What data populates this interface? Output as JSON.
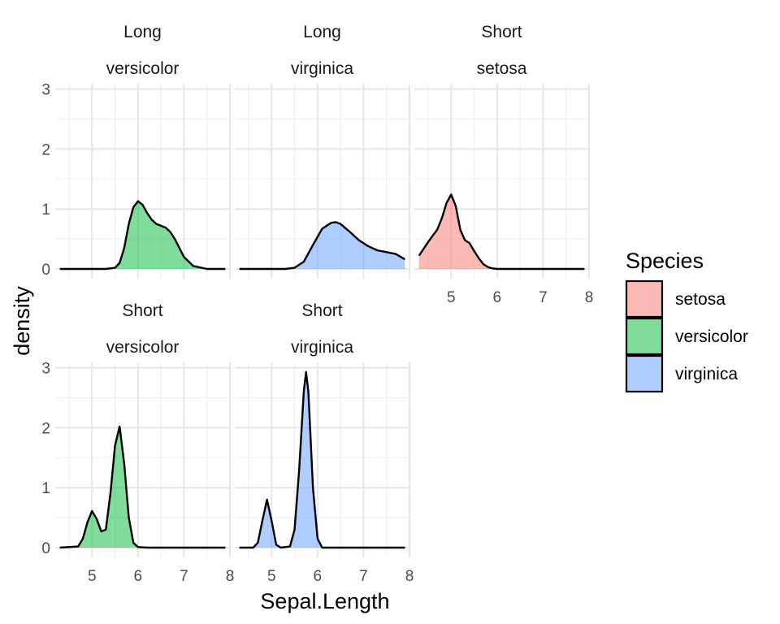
{
  "chart_data": {
    "type": "area",
    "xlabel": "Sepal.Length",
    "ylabel": "density",
    "xlim": [
      4.2,
      8.0
    ],
    "ylim": [
      0,
      3
    ],
    "x_ticks": [
      5,
      6,
      7,
      8
    ],
    "y_ticks": [
      0,
      1,
      2,
      3
    ],
    "grid": true,
    "legend": {
      "title": "Species",
      "position": "right",
      "entries": [
        {
          "label": "setosa",
          "color": "#F8766D"
        },
        {
          "label": "versicolor",
          "color": "#00BA38"
        },
        {
          "label": "virginica",
          "color": "#619CFF"
        }
      ]
    },
    "panels": [
      {
        "strip_top": "Long",
        "strip_bottom": "versicolor",
        "species": "versicolor",
        "x": [
          4.3,
          5.3,
          5.5,
          5.6,
          5.7,
          5.8,
          5.9,
          6.0,
          6.1,
          6.2,
          6.3,
          6.4,
          6.5,
          6.6,
          6.7,
          6.8,
          6.9,
          7.0,
          7.2,
          7.5,
          7.9
        ],
        "y": [
          0.0,
          0.0,
          0.02,
          0.1,
          0.35,
          0.75,
          1.03,
          1.13,
          1.07,
          0.93,
          0.82,
          0.75,
          0.72,
          0.69,
          0.62,
          0.5,
          0.35,
          0.2,
          0.05,
          0.0,
          0.0
        ]
      },
      {
        "strip_top": "Long",
        "strip_bottom": "virginica",
        "species": "virginica",
        "x": [
          4.3,
          5.3,
          5.5,
          5.7,
          5.9,
          6.1,
          6.3,
          6.4,
          6.5,
          6.7,
          6.9,
          7.1,
          7.3,
          7.5,
          7.7,
          7.9
        ],
        "y": [
          0.0,
          0.0,
          0.02,
          0.12,
          0.4,
          0.67,
          0.77,
          0.78,
          0.75,
          0.62,
          0.48,
          0.38,
          0.31,
          0.28,
          0.25,
          0.16
        ]
      },
      {
        "strip_top": "Short",
        "strip_bottom": "setosa",
        "species": "setosa",
        "x": [
          4.3,
          4.5,
          4.7,
          4.8,
          4.9,
          5.0,
          5.1,
          5.2,
          5.3,
          5.4,
          5.5,
          5.6,
          5.7,
          5.8,
          5.9,
          6.0,
          6.2,
          7.9
        ],
        "y": [
          0.22,
          0.45,
          0.66,
          0.85,
          1.1,
          1.24,
          1.05,
          0.65,
          0.48,
          0.43,
          0.3,
          0.18,
          0.08,
          0.03,
          0.01,
          0.0,
          0.0,
          0.0
        ]
      },
      {
        "strip_top": "Short",
        "strip_bottom": "versicolor",
        "species": "versicolor",
        "x": [
          4.3,
          4.7,
          4.8,
          4.9,
          5.0,
          5.1,
          5.2,
          5.3,
          5.4,
          5.5,
          5.6,
          5.7,
          5.8,
          5.9,
          6.0,
          6.2,
          7.9
        ],
        "y": [
          0.0,
          0.02,
          0.15,
          0.42,
          0.61,
          0.48,
          0.27,
          0.3,
          0.9,
          1.7,
          2.02,
          1.4,
          0.5,
          0.08,
          0.01,
          0.0,
          0.0
        ]
      },
      {
        "strip_top": "Short",
        "strip_bottom": "virginica",
        "species": "virginica",
        "x": [
          4.3,
          4.6,
          4.7,
          4.8,
          4.9,
          5.0,
          5.1,
          5.2,
          5.4,
          5.5,
          5.6,
          5.7,
          5.75,
          5.8,
          5.9,
          6.0,
          6.1,
          6.3,
          7.9
        ],
        "y": [
          0.0,
          0.0,
          0.08,
          0.45,
          0.8,
          0.45,
          0.05,
          0.0,
          0.02,
          0.3,
          1.3,
          2.6,
          2.93,
          2.6,
          1.0,
          0.15,
          0.0,
          0.0,
          0.0
        ]
      }
    ]
  }
}
